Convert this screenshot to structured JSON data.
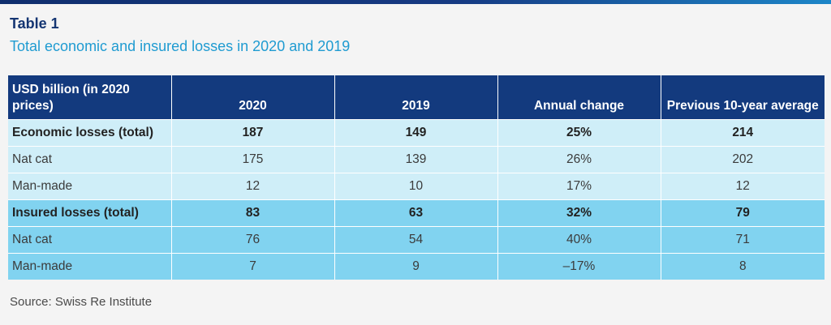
{
  "header": {
    "label": "Table 1",
    "title": "Total economic and insured losses in 2020 and 2019"
  },
  "table": {
    "columns": [
      "USD billion (in 2020 prices)",
      "2020",
      "2019",
      "Annual change",
      "Previous 10-year average"
    ],
    "rows": [
      [
        "Economic losses (total)",
        "187",
        "149",
        "25%",
        "214"
      ],
      [
        "Nat cat",
        "175",
        "139",
        "26%",
        "202"
      ],
      [
        "Man-made",
        "12",
        "10",
        "17%",
        "12"
      ],
      [
        "Insured losses (total)",
        "83",
        "63",
        "32%",
        "79"
      ],
      [
        "Nat cat",
        "76",
        "54",
        "40%",
        "71"
      ],
      [
        "Man-made",
        "7",
        "9",
        "–17%",
        "8"
      ]
    ]
  },
  "colors": {
    "header_background": "#133a7e",
    "economic_rows": "#cfeef8",
    "insured_rows": "#81d3f0",
    "label_color": "#143572",
    "title_color": "#1f9bd1"
  },
  "footer": {
    "source": "Source: Swiss Re Institute"
  }
}
